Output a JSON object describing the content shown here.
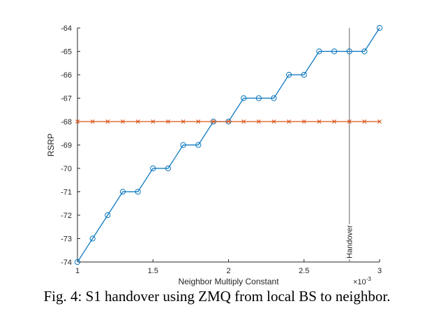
{
  "caption": "Fig. 4: S1 handover using ZMQ from local BS to neighbor.",
  "chart_data": {
    "type": "line",
    "xlabel": "Neighbor Multiply Constant",
    "ylabel": "RSRP",
    "x_exponent_label": "×10",
    "x_exponent_power": "-3",
    "xlim": [
      0.001,
      0.003
    ],
    "ylim": [
      -74,
      -64
    ],
    "x_ticks": [
      0.001,
      0.0015,
      0.002,
      0.0025,
      0.003
    ],
    "x_tick_labels": [
      "1",
      "1.5",
      "2",
      "2.5",
      "3"
    ],
    "y_ticks": [
      -74,
      -73,
      -72,
      -71,
      -70,
      -69,
      -68,
      -67,
      -66,
      -65,
      -64
    ],
    "y_tick_labels": [
      "-74",
      "-73",
      "-72",
      "-71",
      "-70",
      "-69",
      "-68",
      "-67",
      "-66",
      "-65",
      "-64"
    ],
    "grid": false,
    "x": [
      0.001,
      0.0011,
      0.0012,
      0.0013,
      0.0014,
      0.0015,
      0.0016,
      0.0017,
      0.0018,
      0.0019,
      0.002,
      0.0021,
      0.0022,
      0.0023,
      0.0024,
      0.0025,
      0.0026,
      0.0027,
      0.0028,
      0.0029,
      0.003
    ],
    "series": [
      {
        "color": "#0072bd",
        "marker": "circle",
        "values": [
          -74,
          -73,
          -72,
          -71,
          -71,
          -70,
          -70,
          -69,
          -69,
          -68,
          -68,
          -67,
          -67,
          -67,
          -66,
          -66,
          -65,
          -65,
          -65,
          -65,
          -64
        ]
      },
      {
        "color": "#d95319",
        "marker": "x",
        "values": [
          -68,
          -68,
          -68,
          -68,
          -68,
          -68,
          -68,
          -68,
          -68,
          -68,
          -68,
          -68,
          -68,
          -68,
          -68,
          -68,
          -68,
          -68,
          -68,
          -68,
          -68
        ]
      }
    ],
    "annotations": [
      {
        "type": "vline",
        "x": 0.0028,
        "label": "Handover",
        "color": "#808080"
      }
    ]
  }
}
